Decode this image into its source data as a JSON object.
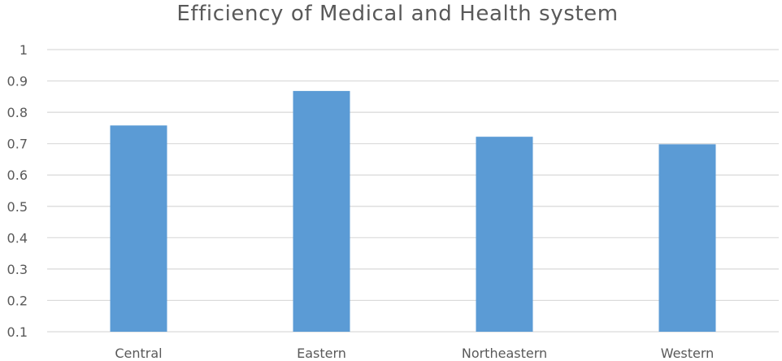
{
  "chart_data": {
    "type": "bar",
    "title": "Efficiency of Medical and Health system",
    "categories": [
      "Central",
      "Eastern",
      "Northeastern",
      "Western"
    ],
    "values": [
      0.758,
      0.868,
      0.722,
      0.698
    ],
    "ylim": [
      0.1,
      1
    ],
    "yticks": [
      "0.1",
      "0.2",
      "0.3",
      "0.4",
      "0.5",
      "0.6",
      "0.7",
      "0.8",
      "0.9",
      "1"
    ],
    "grid": true,
    "bar_color": "#5B9BD5",
    "grid_color": "#D9D9D9",
    "text_color": "#595959"
  }
}
